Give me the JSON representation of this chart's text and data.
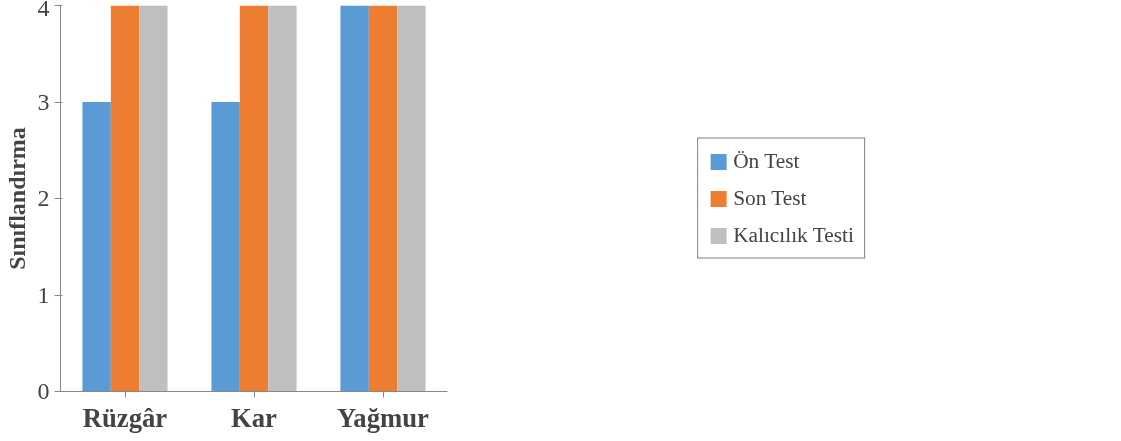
{
  "chart_data": {
    "type": "bar",
    "ylabel": "Sınıflandırma",
    "categories": [
      "Rüzgâr",
      "Kar",
      "Yağmur"
    ],
    "series": [
      {
        "name": "Ön Test",
        "color": "#5b9bd5",
        "values": [
          3,
          3,
          4
        ]
      },
      {
        "name": "Son Test",
        "color": "#ed7d31",
        "values": [
          4,
          4,
          4
        ]
      },
      {
        "name": "Kalıcılık Testi",
        "color": "#bfbfbf",
        "values": [
          4,
          4,
          4
        ]
      }
    ],
    "ylim": [
      0,
      4
    ],
    "yticks": [
      0,
      1,
      2,
      3,
      4
    ],
    "grid": false,
    "legend": "right"
  }
}
